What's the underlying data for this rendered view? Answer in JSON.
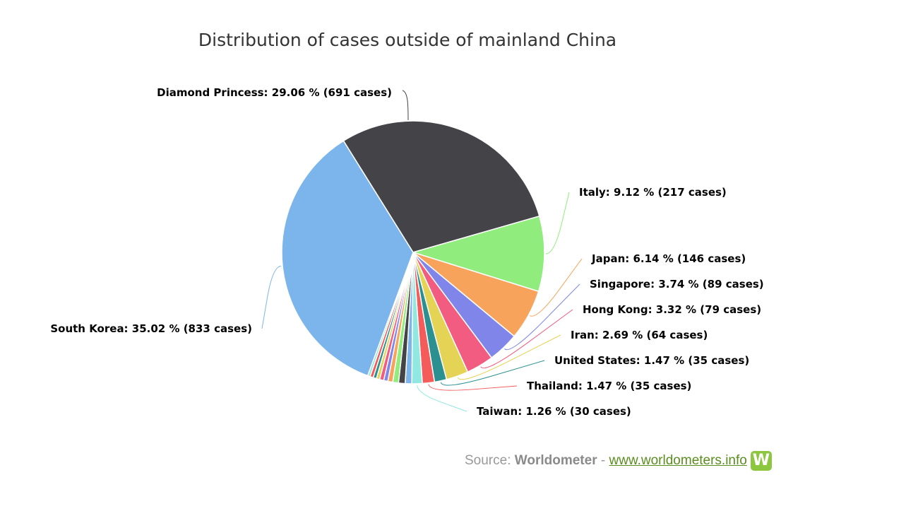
{
  "chart_data": {
    "type": "pie",
    "title": "Distribution of cases outside of mainland China",
    "slices": [
      {
        "name": "Diamond Princess",
        "percent": 29.06,
        "cases": 691,
        "color": "#434348",
        "label": "Diamond Princess: 29.06 % (691 cases)"
      },
      {
        "name": "Italy",
        "percent": 9.12,
        "cases": 217,
        "color": "#90ed7d",
        "label": "Italy: 9.12 % (217 cases)"
      },
      {
        "name": "Japan",
        "percent": 6.14,
        "cases": 146,
        "color": "#f7a35c",
        "label": "Japan: 6.14 % (146 cases)"
      },
      {
        "name": "Singapore",
        "percent": 3.74,
        "cases": 89,
        "color": "#8085e9",
        "label": "Singapore: 3.74 % (89 cases)"
      },
      {
        "name": "Hong Kong",
        "percent": 3.32,
        "cases": 79,
        "color": "#f15c80",
        "label": "Hong Kong: 3.32 % (79 cases)"
      },
      {
        "name": "Iran",
        "percent": 2.69,
        "cases": 64,
        "color": "#e4d354",
        "label": "Iran: 2.69 % (64 cases)"
      },
      {
        "name": "United States",
        "percent": 1.47,
        "cases": 35,
        "color": "#2b908f",
        "label": "United States: 1.47 % (35 cases)"
      },
      {
        "name": "Thailand",
        "percent": 1.47,
        "cases": 35,
        "color": "#f45b5b",
        "label": "Thailand: 1.47 % (35 cases)"
      },
      {
        "name": "Taiwan",
        "percent": 1.26,
        "cases": 30,
        "color": "#91e8e1",
        "label": "Taiwan: 1.26 % (30 cases)"
      },
      {
        "name": "",
        "percent": 0.8,
        "cases": null,
        "color": "#7cb5ec",
        "label": ""
      },
      {
        "name": "",
        "percent": 0.8,
        "cases": null,
        "color": "#434348",
        "label": ""
      },
      {
        "name": "",
        "percent": 0.7,
        "cases": null,
        "color": "#90ed7d",
        "label": ""
      },
      {
        "name": "",
        "percent": 0.6,
        "cases": null,
        "color": "#f7a35c",
        "label": ""
      },
      {
        "name": "",
        "percent": 0.5,
        "cases": null,
        "color": "#8085e9",
        "label": ""
      },
      {
        "name": "",
        "percent": 0.5,
        "cases": null,
        "color": "#f15c80",
        "label": ""
      },
      {
        "name": "",
        "percent": 0.4,
        "cases": null,
        "color": "#e4d354",
        "label": ""
      },
      {
        "name": "",
        "percent": 0.4,
        "cases": null,
        "color": "#2b908f",
        "label": ""
      },
      {
        "name": "",
        "percent": 0.4,
        "cases": null,
        "color": "#f45b5b",
        "label": ""
      },
      {
        "name": "",
        "percent": 0.3,
        "cases": null,
        "color": "#91e8e1",
        "label": ""
      },
      {
        "name": "South Korea",
        "percent": 35.02,
        "cases": 833,
        "color": "#7cb5ec",
        "label": "South Korea: 35.02 % (833 cases)"
      }
    ]
  },
  "source": {
    "prefix": "Source:",
    "brand": "Worldometer",
    "separator": "-",
    "link": "www.worldometers.info",
    "logo_letter": "W",
    "logo_color": "#8dc63f"
  }
}
